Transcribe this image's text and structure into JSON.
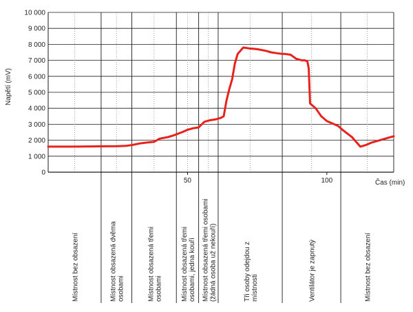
{
  "chart_data": {
    "type": "line",
    "title": "",
    "ylabel": "Napětí (mV)",
    "xlabel": "Čas (min)",
    "ylim": [
      0,
      10000
    ],
    "xlim": [
      0,
      124
    ],
    "yticks": [
      {
        "value": 0,
        "label": "0"
      },
      {
        "value": 1000,
        "label": "1 000"
      },
      {
        "value": 2000,
        "label": "2 000"
      },
      {
        "value": 3000,
        "label": "3 000"
      },
      {
        "value": 4000,
        "label": "4 000"
      },
      {
        "value": 5000,
        "label": "5 000"
      },
      {
        "value": 6000,
        "label": "6 000"
      },
      {
        "value": 7000,
        "label": "7 000"
      },
      {
        "value": 8000,
        "label": "8 000"
      },
      {
        "value": 9000,
        "label": "9 000"
      },
      {
        "value": 10000,
        "label": "10 000"
      }
    ],
    "xticks": [
      {
        "value": 50,
        "label": "50"
      },
      {
        "value": 100,
        "label": "100"
      }
    ],
    "grid": true,
    "line_color": "#e8221b",
    "series": [
      {
        "x": [
          0,
          5,
          10,
          15,
          20,
          25,
          28,
          30,
          33,
          35,
          38,
          40,
          43,
          45,
          48,
          50,
          52,
          54,
          56,
          58,
          60,
          62,
          63,
          64,
          65,
          66,
          67,
          68,
          70,
          72,
          75,
          78,
          80,
          82,
          84,
          85,
          87,
          89,
          91,
          92,
          93,
          93.5,
          94,
          96,
          98,
          100,
          104,
          106,
          109,
          110,
          111,
          112,
          114,
          116,
          118,
          120,
          122,
          124
        ],
        "y": [
          1600,
          1600,
          1600,
          1610,
          1620,
          1630,
          1650,
          1700,
          1800,
          1850,
          1900,
          2100,
          2200,
          2300,
          2500,
          2650,
          2750,
          2800,
          3150,
          3250,
          3300,
          3400,
          3500,
          4500,
          5200,
          5800,
          6800,
          7400,
          7800,
          7750,
          7700,
          7600,
          7500,
          7450,
          7400,
          7400,
          7350,
          7100,
          7000,
          7000,
          6950,
          6500,
          4300,
          4000,
          3500,
          3200,
          2900,
          2600,
          2200,
          2000,
          1800,
          1600,
          1700,
          1850,
          1950,
          2050,
          2150,
          2250
        ]
      }
    ],
    "vlines": [
      0,
      19,
      30,
      46,
      54,
      61,
      84,
      105,
      124
    ],
    "phases": [
      {
        "label": "Místnost bez obsazení"
      },
      {
        "label": "Místnost obsazená dvěma osobami"
      },
      {
        "label": "Místnost obsazená třemi osobami"
      },
      {
        "label": "Místnost obsazená třemi osobami, jedna kouří"
      },
      {
        "label": "Místnost obsazená třemi osobami (žádná osoba už nekouří)"
      },
      {
        "label": "Tři osoby odejdou z místnosti"
      },
      {
        "label": "Ventilátor je zapnutý"
      },
      {
        "label": "Místnost bez obsazení"
      }
    ]
  }
}
